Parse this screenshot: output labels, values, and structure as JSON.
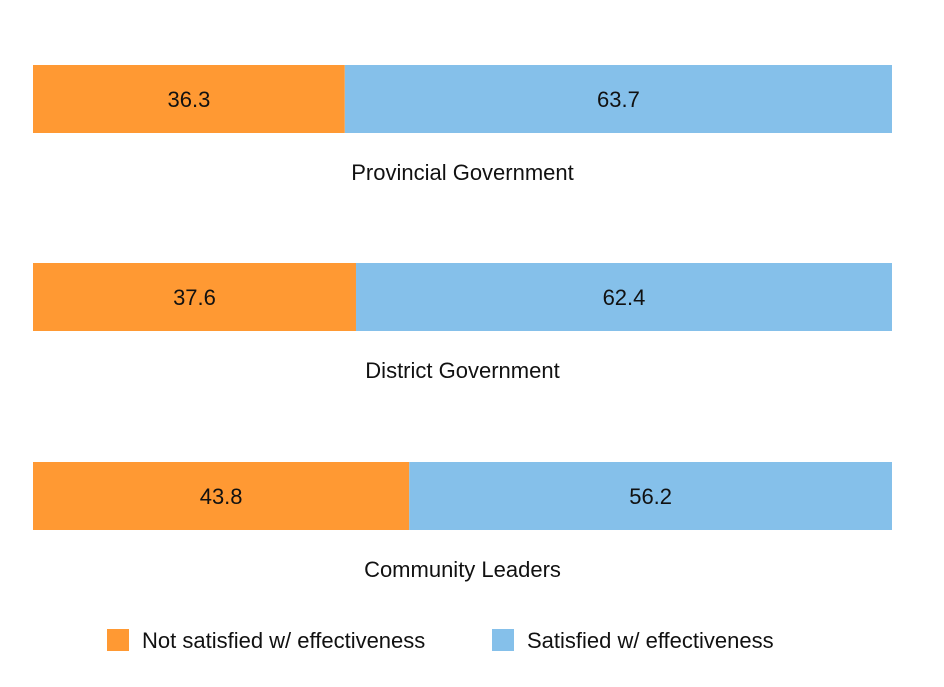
{
  "chart_data": {
    "type": "bar",
    "orientation": "horizontal-stacked-100",
    "categories": [
      "Provincial Government",
      "District Government",
      "Community Leaders"
    ],
    "series": [
      {
        "name": "Not satisfied w/ effectiveness",
        "values": [
          36.3,
          37.6,
          43.8
        ],
        "color": "#ff9933"
      },
      {
        "name": "Satisfied w/ effectiveness",
        "values": [
          63.7,
          62.4,
          56.2
        ],
        "color": "#85c0ea"
      }
    ],
    "xlim": [
      0,
      100
    ],
    "grid": false,
    "legend_position": "bottom"
  }
}
